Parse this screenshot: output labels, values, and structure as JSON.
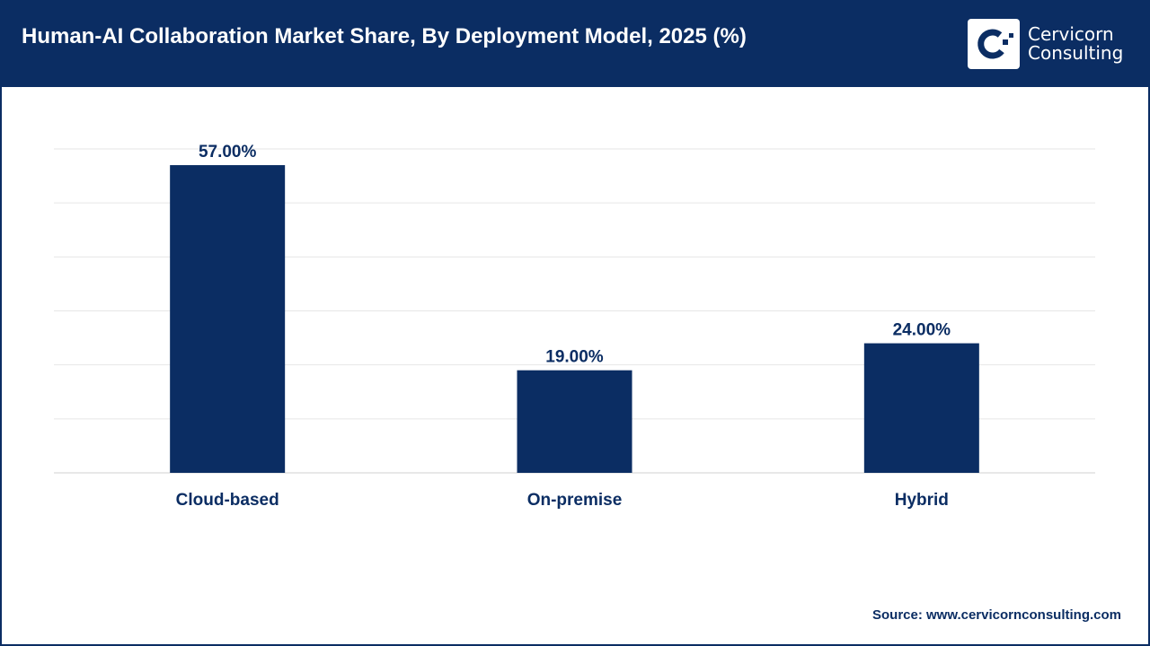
{
  "header": {
    "title": "Human-AI Collaboration Market Share, By Deployment Model, 2025 (%)"
  },
  "logo": {
    "line1": "Cervicorn",
    "line2": "Consulting"
  },
  "source": "Source: www.cervicornconsulting.com",
  "colors": {
    "header": "#0b2d63",
    "bar": "#0b2d63",
    "grid": "#e6e6e6"
  },
  "chart_data": {
    "type": "bar",
    "title": "Human-AI Collaboration Market Share, By Deployment Model, 2025 (%)",
    "categories": [
      "Cloud-based",
      "On-premise",
      "Hybrid"
    ],
    "values": [
      57,
      19,
      24
    ],
    "data_labels": [
      "57.00%",
      "19.00%",
      "24.00%"
    ],
    "xlabel": "",
    "ylabel": "",
    "ylim": [
      0,
      60
    ],
    "grid": true,
    "y_axis_labels_shown": false
  }
}
